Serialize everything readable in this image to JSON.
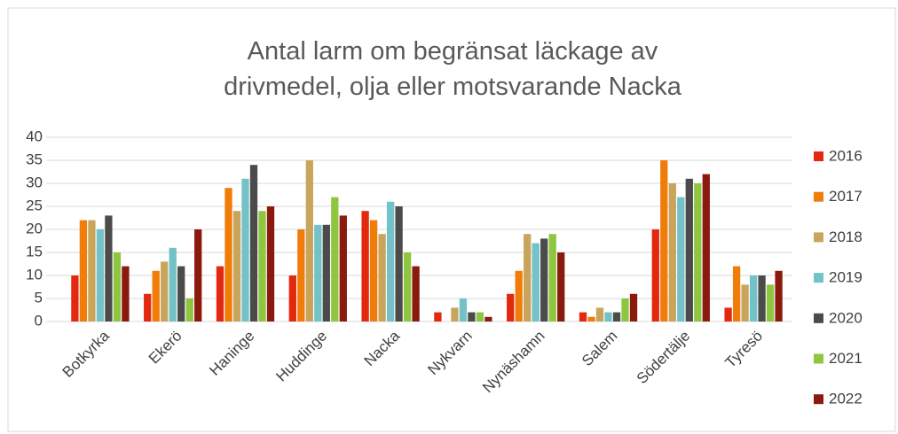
{
  "chart_data": {
    "type": "bar",
    "title": "Antal larm om begränsat läckage av drivmedel, olja eller motsvarande Nacka",
    "categories": [
      "Botkyrka",
      "Ekerö",
      "Haninge",
      "Huddinge",
      "Nacka",
      "Nykvarn",
      "Nynäshamn",
      "Salem",
      "Södertälje",
      "Tyresö"
    ],
    "series": [
      {
        "name": "2016",
        "color": "#e2290f",
        "values": [
          10,
          6,
          12,
          10,
          24,
          2,
          6,
          2,
          20,
          3
        ]
      },
      {
        "name": "2017",
        "color": "#f07c0a",
        "values": [
          22,
          11,
          29,
          20,
          22,
          0,
          11,
          1,
          35,
          12
        ]
      },
      {
        "name": "2018",
        "color": "#c9a55c",
        "values": [
          22,
          13,
          24,
          35,
          19,
          3,
          19,
          3,
          30,
          8
        ]
      },
      {
        "name": "2019",
        "color": "#72c2c8",
        "values": [
          20,
          16,
          31,
          21,
          26,
          5,
          17,
          2,
          27,
          10
        ]
      },
      {
        "name": "2020",
        "color": "#4b4b4b",
        "values": [
          23,
          12,
          34,
          21,
          25,
          2,
          18,
          2,
          31,
          10
        ]
      },
      {
        "name": "2021",
        "color": "#8ec63f",
        "values": [
          15,
          5,
          24,
          27,
          15,
          2,
          19,
          5,
          30,
          8
        ]
      },
      {
        "name": "2022",
        "color": "#8b1a0e",
        "values": [
          12,
          20,
          25,
          23,
          12,
          1,
          15,
          6,
          32,
          11
        ]
      }
    ],
    "ylim": [
      0,
      40
    ],
    "yticks": [
      0,
      5,
      10,
      15,
      20,
      25,
      30,
      35,
      40
    ],
    "grid": true,
    "legend": "right"
  }
}
